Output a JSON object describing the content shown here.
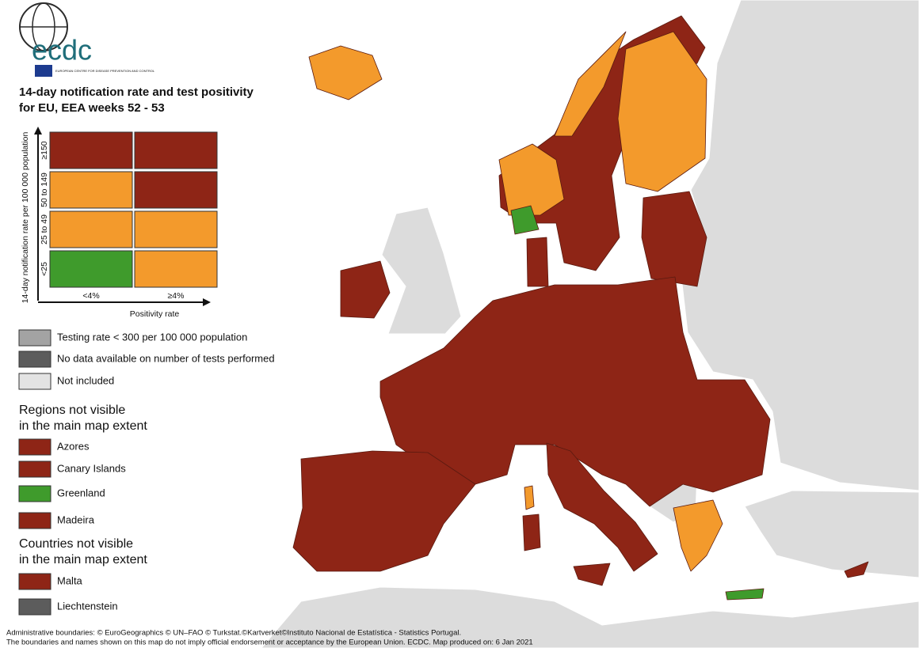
{
  "logo": {
    "name": "ecdc",
    "subtitle": "EUROPEAN CENTRE FOR DISEASE PREVENTION AND CONTROL"
  },
  "title": [
    "14-day notification rate and test positivity",
    "for EU, EEA weeks 52 - 53"
  ],
  "matrix": {
    "y_label": "14-day notification rate per 100 000 population",
    "x_label": "Positivity rate",
    "rows": [
      "≥150",
      "50 to 149",
      "25 to 49",
      "<25"
    ],
    "columns": [
      "<4%",
      "≥4%"
    ],
    "colors": [
      [
        "#8e2516",
        "#8e2516"
      ],
      [
        "#f39a2c",
        "#8e2516"
      ],
      [
        "#f39a2c",
        "#f39a2c"
      ],
      [
        "#3f9b2c",
        "#f39a2c"
      ]
    ]
  },
  "legend": [
    {
      "label": "Testing rate < 300 per 100 000 population",
      "color": "#a3a3a3"
    },
    {
      "label": "No data available on number of tests performed",
      "color": "#5c5c5c"
    },
    {
      "label": "Not included",
      "color": "#e3e3e3"
    }
  ],
  "regions": {
    "heading": [
      "Regions not visible",
      "in the main map extent"
    ],
    "items": [
      {
        "label": "Azores",
        "color": "#8e2516"
      },
      {
        "label": "Canary Islands",
        "color": "#8e2516"
      },
      {
        "label": "Greenland",
        "color": "#3f9b2c"
      },
      {
        "label": "Madeira",
        "color": "#8e2516"
      }
    ]
  },
  "countries": {
    "heading": [
      "Countries not visible",
      "in the main map extent"
    ],
    "items": [
      {
        "label": "Malta",
        "color": "#8e2516"
      },
      {
        "label": "Liechtenstein",
        "color": "#5c5c5c"
      }
    ]
  },
  "footer": [
    "Administrative boundaries: © EuroGeographics © UN–FAO © Turkstat.©Kartverket©Instituto Nacional de Estatística - Statistics Portugal.",
    "The boundaries and names shown on this map do not imply official endorsement or acceptance by the European Union. ECDC. Map produced on: 6 Jan 2021"
  ]
}
